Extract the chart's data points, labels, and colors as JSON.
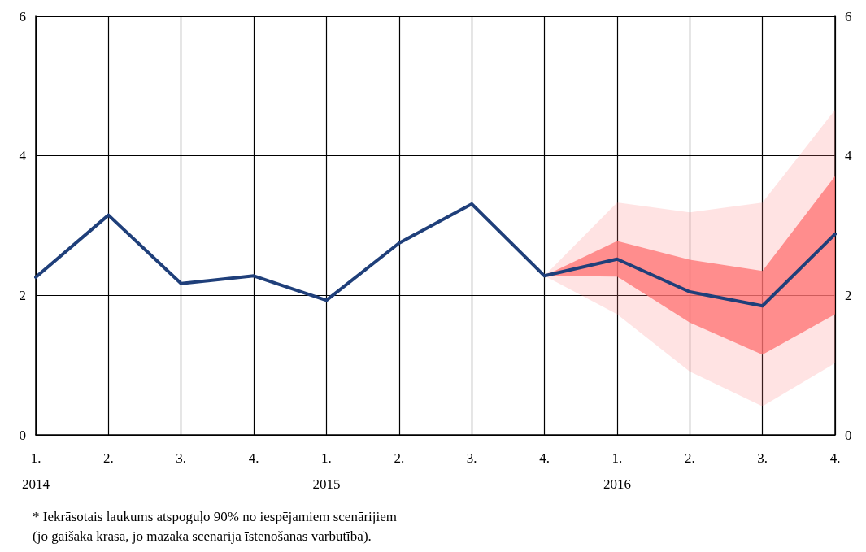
{
  "chart_data": {
    "type": "line",
    "categories": [
      "1.\n2014",
      "2.",
      "3.",
      "4.",
      "1.\n2015",
      "2.",
      "3.",
      "4.",
      "1.\n2016",
      "2.",
      "3.",
      "4."
    ],
    "series": [
      {
        "color": "#ff8080",
        "values": [
          null,
          null,
          null,
          null,
          null,
          null,
          null,
          null,
          null,
          null,
          null,
          null
        ],
        "lower": [
          null,
          null,
          null,
          null,
          null,
          null,
          null,
          2.28,
          1.73,
          0.91,
          0.41,
          1.03
        ],
        "upper": [
          null,
          null,
          null,
          null,
          null,
          null,
          null,
          2.28,
          3.33,
          3.19,
          3.33,
          4.66
        ]
      },
      {
        "color": "#ff7070",
        "values": [
          null,
          null,
          null,
          null,
          null,
          null,
          null,
          null,
          null,
          null,
          null,
          null
        ],
        "lower": [
          null,
          null,
          null,
          null,
          null,
          null,
          null,
          2.28,
          2.27,
          1.61,
          1.15,
          1.73
        ],
        "upper": [
          null,
          null,
          null,
          null,
          null,
          null,
          null,
          2.28,
          2.78,
          2.51,
          2.35,
          3.71
        ]
      },
      {
        "color": "#1f3f7a",
        "values": [
          2.26,
          3.15,
          2.17,
          2.28,
          1.93,
          2.75,
          3.31,
          2.28,
          2.52,
          2.05,
          1.85,
          2.88
        ]
      }
    ],
    "ylim": [
      0,
      6
    ],
    "yticks": [
      0,
      2,
      4,
      6
    ],
    "y2lim": [
      0,
      6
    ],
    "y2ticks": [
      0,
      2,
      4,
      6
    ],
    "grid": true,
    "marker": "none",
    "line_style": "solid",
    "annotations": [
      "* Iekrāsotais laukums atspoguļo 90% no iespējamiem scenārijiem",
      "(jo gaišāka krāsa, jo mazāka scenārija īstenošanās varbūtība)."
    ]
  }
}
